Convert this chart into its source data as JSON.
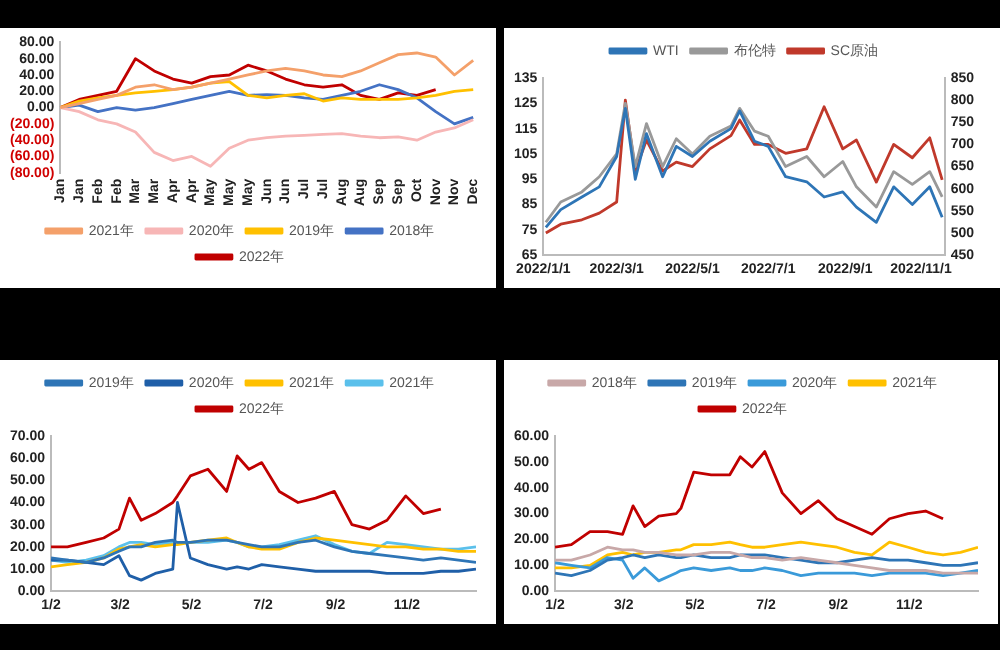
{
  "chart_data": [
    {
      "type": "line",
      "categories": [
        "Jan",
        "Jan",
        "Feb",
        "Feb",
        "Mar",
        "Mar",
        "Apr",
        "Apr",
        "May",
        "May",
        "May",
        "Jun",
        "Jun",
        "Jul",
        "Jul",
        "Aug",
        "Aug",
        "Sep",
        "Sep",
        "Oct",
        "Nov",
        "Nov",
        "Dec"
      ],
      "ylim": [
        -80,
        80
      ],
      "yticks": [
        {
          "value": 80,
          "label": "80.00"
        },
        {
          "value": 60,
          "label": "60.00"
        },
        {
          "value": 40,
          "label": "40.00"
        },
        {
          "value": 20,
          "label": "20.00"
        },
        {
          "value": 0,
          "label": "0.00"
        },
        {
          "value": -20,
          "label": "(20.00)"
        },
        {
          "value": -40,
          "label": "(40.00)"
        },
        {
          "value": -60,
          "label": "(60.00)"
        },
        {
          "value": -80,
          "label": "(80.00)"
        }
      ],
      "legend": "bottom",
      "series": [
        {
          "name": "2021年",
          "color": "#f4a06a",
          "values": [
            0,
            5,
            10,
            15,
            25,
            28,
            22,
            25,
            30,
            35,
            40,
            45,
            48,
            45,
            40,
            38,
            45,
            55,
            65,
            67,
            62,
            40,
            58
          ]
        },
        {
          "name": "2020年",
          "color": "#f7b6b6",
          "values": [
            0,
            -5,
            -15,
            -20,
            -30,
            -55,
            -65,
            -60,
            -72,
            -50,
            -40,
            -37,
            -35,
            -34,
            -33,
            -32,
            -35,
            -37,
            -36,
            -40,
            -30,
            -25,
            -15
          ]
        },
        {
          "name": "2019年",
          "color": "#ffc000",
          "values": [
            0,
            8,
            12,
            15,
            18,
            20,
            22,
            25,
            30,
            32,
            15,
            12,
            15,
            17,
            8,
            12,
            10,
            10,
            10,
            12,
            15,
            20,
            22
          ]
        },
        {
          "name": "2018年",
          "color": "#4472c4",
          "values": [
            0,
            3,
            -5,
            0,
            -3,
            0,
            5,
            10,
            15,
            20,
            15,
            16,
            15,
            12,
            10,
            15,
            20,
            28,
            22,
            12,
            -5,
            -20,
            -12
          ]
        },
        {
          "name": "2022年",
          "color": "#c00000",
          "values": [
            0,
            10,
            15,
            20,
            60,
            45,
            35,
            30,
            38,
            40,
            52,
            45,
            35,
            28,
            25,
            28,
            15,
            10,
            18,
            15,
            22,
            null,
            null
          ]
        }
      ]
    },
    {
      "type": "line",
      "x": [
        "2022-01-03",
        "2022-01-15",
        "2022-02-01",
        "2022-02-15",
        "2022-03-01",
        "2022-03-08",
        "2022-03-16",
        "2022-03-25",
        "2022-04-07",
        "2022-04-18",
        "2022-05-01",
        "2022-05-15",
        "2022-06-01",
        "2022-06-08",
        "2022-06-20",
        "2022-07-01",
        "2022-07-15",
        "2022-08-01",
        "2022-08-15",
        "2022-08-30",
        "2022-09-10",
        "2022-09-26",
        "2022-10-10",
        "2022-10-25",
        "2022-11-08",
        "2022-11-18"
      ],
      "xlim": [
        "2022-01-01",
        "2022-11-20"
      ],
      "xticks": [
        {
          "value": "2022-01-01",
          "label": "2022/1/1"
        },
        {
          "value": "2022-03-01",
          "label": "2022/3/1"
        },
        {
          "value": "2022-05-01",
          "label": "2022/5/1"
        },
        {
          "value": "2022-07-01",
          "label": "2022/7/1"
        },
        {
          "value": "2022-09-01",
          "label": "2022/9/1"
        },
        {
          "value": "2022-11-01",
          "label": "2022/11/1"
        }
      ],
      "ylim": [
        65,
        135
      ],
      "yticks": [
        65,
        75,
        85,
        95,
        105,
        115,
        125,
        135
      ],
      "y2lim": [
        450,
        850
      ],
      "y2ticks": [
        450,
        500,
        550,
        600,
        650,
        700,
        750,
        800,
        850
      ],
      "legend": "top",
      "series": [
        {
          "name": "WTI",
          "color": "#2e75b6",
          "values": [
            76,
            83,
            88,
            92,
            104,
            123,
            95,
            113,
            96,
            108,
            104,
            110,
            115,
            122,
            110,
            108,
            96,
            94,
            88,
            90,
            84,
            78,
            92,
            85,
            92,
            80
          ]
        },
        {
          "name": "布伦特",
          "color": "#999999",
          "values": [
            78,
            86,
            90,
            96,
            105,
            125,
            100,
            117,
            100,
            111,
            105,
            112,
            116,
            123,
            114,
            112,
            100,
            104,
            96,
            102,
            92,
            84,
            98,
            93,
            98,
            88
          ]
        },
        {
          "name": "SC原油",
          "color": "#c0392b",
          "axis": "y2",
          "values": [
            500,
            520,
            530,
            545,
            570,
            800,
            640,
            710,
            640,
            660,
            650,
            690,
            720,
            755,
            700,
            700,
            680,
            690,
            785,
            690,
            710,
            615,
            700,
            670,
            715,
            620
          ]
        }
      ]
    },
    {
      "type": "line",
      "x": [
        "--01-02",
        "--01-16",
        "--02-01",
        "--02-16",
        "--03-01",
        "--03-10",
        "--03-20",
        "--04-01",
        "--04-16",
        "--04-20",
        "--05-01",
        "--05-16",
        "--06-01",
        "--06-10",
        "--06-20",
        "--07-01",
        "--07-16",
        "--08-01",
        "--08-16",
        "--09-01",
        "--09-16",
        "--10-01",
        "--10-16",
        "--11-01",
        "--11-16",
        "--12-01",
        "--12-16",
        "--12-31"
      ],
      "xlim": [
        "--01-02",
        "--12-31"
      ],
      "xticks": [
        {
          "value": "--01-02",
          "label": "1/2"
        },
        {
          "value": "--03-02",
          "label": "3/2"
        },
        {
          "value": "--05-02",
          "label": "5/2"
        },
        {
          "value": "--07-02",
          "label": "7/2"
        },
        {
          "value": "--09-02",
          "label": "9/2"
        },
        {
          "value": "--11-02",
          "label": "11/2"
        }
      ],
      "ylim": [
        0,
        70
      ],
      "yticks": [
        {
          "value": 0,
          "label": "0.00"
        },
        {
          "value": 10,
          "label": "10.00"
        },
        {
          "value": 20,
          "label": "20.00"
        },
        {
          "value": 30,
          "label": "30.00"
        },
        {
          "value": 40,
          "label": "40.00"
        },
        {
          "value": 50,
          "label": "50.00"
        },
        {
          "value": 60,
          "label": "60.00"
        },
        {
          "value": 70,
          "label": "70.00"
        }
      ],
      "legend": "top",
      "series": [
        {
          "name": "2019年",
          "color": "#2e75b6",
          "values": [
            15,
            14,
            13,
            15,
            18,
            20,
            20,
            22,
            23,
            22,
            22,
            23,
            23,
            22,
            21,
            20,
            20,
            22,
            23,
            20,
            18,
            17,
            16,
            15,
            14,
            15,
            14,
            13
          ]
        },
        {
          "name": "2020年",
          "color": "#1f5fa8",
          "values": [
            14,
            14,
            13,
            12,
            16,
            7,
            5,
            8,
            10,
            40,
            15,
            12,
            10,
            11,
            10,
            12,
            11,
            10,
            9,
            9,
            9,
            9,
            8,
            8,
            8,
            9,
            9,
            10
          ]
        },
        {
          "name": "2021年",
          "color": "#ffc000",
          "values": [
            11,
            12,
            13,
            15,
            19,
            20,
            21,
            20,
            21,
            21,
            22,
            23,
            24,
            22,
            20,
            19,
            19,
            22,
            24,
            23,
            22,
            21,
            20,
            20,
            19,
            19,
            18,
            18
          ]
        },
        {
          "name": "2021年",
          "color": "#5bc0eb",
          "values": [
            14,
            13,
            14,
            16,
            20,
            22,
            22,
            21,
            22,
            22,
            22,
            22,
            23,
            22,
            20,
            20,
            21,
            23,
            25,
            21,
            18,
            17,
            22,
            21,
            20,
            19,
            19,
            20
          ]
        },
        {
          "name": "2022年",
          "color": "#c00000",
          "values": [
            20,
            20,
            22,
            24,
            28,
            42,
            32,
            35,
            40,
            43,
            52,
            55,
            45,
            61,
            55,
            58,
            45,
            40,
            42,
            45,
            30,
            28,
            32,
            43,
            35,
            37,
            null,
            null
          ]
        }
      ]
    },
    {
      "type": "line",
      "x": [
        "--01-02",
        "--01-16",
        "--02-01",
        "--02-16",
        "--03-01",
        "--03-10",
        "--03-20",
        "--04-01",
        "--04-16",
        "--04-20",
        "--05-01",
        "--05-16",
        "--06-01",
        "--06-10",
        "--06-20",
        "--07-01",
        "--07-16",
        "--08-01",
        "--08-16",
        "--09-01",
        "--09-16",
        "--10-01",
        "--10-16",
        "--11-01",
        "--11-16",
        "--12-01",
        "--12-16",
        "--12-31"
      ],
      "xlim": [
        "--01-02",
        "--12-31"
      ],
      "xticks": [
        {
          "value": "--01-02",
          "label": "1/2"
        },
        {
          "value": "--03-02",
          "label": "3/2"
        },
        {
          "value": "--05-02",
          "label": "5/2"
        },
        {
          "value": "--07-02",
          "label": "7/2"
        },
        {
          "value": "--09-02",
          "label": "9/2"
        },
        {
          "value": "--11-02",
          "label": "11/2"
        }
      ],
      "ylim": [
        0,
        60
      ],
      "yticks": [
        {
          "value": 0,
          "label": "0.00"
        },
        {
          "value": 10,
          "label": "10.00"
        },
        {
          "value": 20,
          "label": "20.00"
        },
        {
          "value": 30,
          "label": "30.00"
        },
        {
          "value": 40,
          "label": "40.00"
        },
        {
          "value": 50,
          "label": "50.00"
        },
        {
          "value": 60,
          "label": "60.00"
        }
      ],
      "legend": "top",
      "series": [
        {
          "name": "2018年",
          "color": "#c8a8a8",
          "values": [
            12,
            12,
            14,
            17,
            16,
            16,
            15,
            15,
            14,
            14,
            14,
            15,
            15,
            14,
            13,
            13,
            12,
            13,
            12,
            11,
            10,
            9,
            8,
            8,
            8,
            7,
            7,
            7
          ]
        },
        {
          "name": "2019年",
          "color": "#2e75b6",
          "values": [
            7,
            6,
            8,
            12,
            13,
            14,
            13,
            14,
            13,
            13,
            14,
            13,
            13,
            14,
            14,
            14,
            13,
            12,
            11,
            11,
            12,
            13,
            12,
            12,
            11,
            10,
            10,
            11
          ]
        },
        {
          "name": "2020年",
          "color": "#3a9ad9",
          "values": [
            11,
            10,
            9,
            13,
            12,
            5,
            9,
            4,
            7,
            8,
            9,
            8,
            9,
            8,
            8,
            9,
            8,
            6,
            7,
            7,
            7,
            6,
            7,
            7,
            7,
            6,
            7,
            8
          ]
        },
        {
          "name": "2021年",
          "color": "#ffc000",
          "values": [
            9,
            9,
            10,
            14,
            15,
            14,
            15,
            15,
            16,
            16,
            18,
            18,
            19,
            18,
            17,
            17,
            18,
            19,
            18,
            17,
            15,
            14,
            19,
            17,
            15,
            14,
            15,
            17
          ]
        },
        {
          "name": "2022年",
          "color": "#c00000",
          "values": [
            17,
            18,
            23,
            23,
            22,
            33,
            25,
            29,
            30,
            32,
            46,
            45,
            45,
            52,
            48,
            54,
            38,
            30,
            35,
            28,
            25,
            22,
            28,
            30,
            31,
            28,
            null,
            null
          ]
        }
      ]
    }
  ]
}
